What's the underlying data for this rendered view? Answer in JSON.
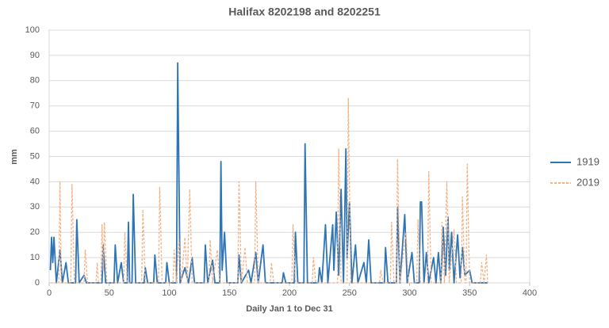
{
  "chart_data": {
    "type": "line",
    "title": "Halifax 8202198 and 8202251",
    "x_label": "Daily Jan 1 to Dec 31",
    "y_label": "mm",
    "xlim": [
      0,
      400
    ],
    "xticks": [
      0,
      50,
      100,
      150,
      200,
      250,
      300,
      350,
      400
    ],
    "ylim": [
      0,
      100
    ],
    "yticks": [
      0,
      10,
      20,
      30,
      40,
      50,
      60,
      70,
      80,
      90,
      100
    ],
    "grid": true,
    "legend": "right",
    "series": [
      {
        "name": "1919",
        "color": "#2e75b6",
        "line_style": "solid",
        "x": [
          1,
          2,
          3,
          4,
          6,
          9,
          11,
          14,
          16,
          22,
          23,
          25,
          29,
          31,
          44,
          45,
          47,
          54,
          55,
          57,
          60,
          62,
          65,
          66,
          67,
          69,
          70,
          72,
          79,
          80,
          82,
          87,
          88,
          90,
          97,
          98,
          100,
          106,
          107,
          109,
          113,
          116,
          119,
          121,
          129,
          130,
          132,
          136,
          138,
          142,
          143,
          144,
          146,
          148,
          157,
          158,
          160,
          166,
          168,
          172,
          174,
          178,
          180,
          194,
          195,
          197,
          204,
          205,
          207,
          212,
          213,
          215,
          224,
          225,
          227,
          230,
          232,
          236,
          237,
          239,
          241,
          243,
          245,
          247,
          248,
          250,
          252,
          255,
          257,
          262,
          264,
          266,
          268,
          279,
          280,
          282,
          289,
          290,
          292,
          296,
          298,
          302,
          304,
          308,
          309,
          310,
          312,
          314,
          316,
          320,
          322,
          324,
          326,
          328,
          330,
          332,
          333,
          335,
          337,
          340,
          342,
          344,
          346,
          350,
          352,
          365
        ],
        "values": [
          5,
          18,
          8,
          18,
          0,
          13,
          0,
          8,
          0,
          0,
          25,
          0,
          3,
          0,
          0,
          15,
          0,
          0,
          15,
          0,
          8,
          0,
          0,
          24,
          0,
          0,
          35,
          0,
          0,
          6,
          0,
          0,
          11,
          0,
          0,
          8,
          0,
          0,
          87,
          0,
          6,
          0,
          10,
          0,
          0,
          15,
          0,
          9,
          0,
          0,
          48,
          5,
          20,
          0,
          0,
          11,
          0,
          5,
          0,
          12,
          0,
          15,
          0,
          0,
          4,
          0,
          0,
          20,
          0,
          0,
          55,
          0,
          0,
          6,
          0,
          23,
          0,
          23,
          5,
          28,
          3,
          37,
          0,
          53,
          10,
          32,
          0,
          15,
          0,
          8,
          0,
          17,
          0,
          0,
          14,
          0,
          0,
          30,
          0,
          27,
          0,
          12,
          0,
          0,
          32,
          32,
          0,
          12,
          0,
          10,
          0,
          12,
          0,
          22,
          3,
          26,
          5,
          20,
          0,
          19,
          2,
          14,
          3,
          5,
          0,
          0
        ]
      },
      {
        "name": "2019",
        "color": "#f4b183",
        "line_style": "dashed",
        "x": [
          1,
          8,
          9,
          10,
          18,
          19,
          21,
          29,
          30,
          32,
          39,
          40,
          41,
          43,
          44,
          45,
          46,
          48,
          62,
          63,
          65,
          77,
          78,
          80,
          91,
          92,
          94,
          103,
          104,
          106,
          108,
          110,
          113,
          115,
          117,
          119,
          133,
          134,
          136,
          140,
          142,
          157,
          158,
          160,
          163,
          165,
          171,
          172,
          174,
          184,
          185,
          187,
          202,
          203,
          205,
          219,
          220,
          222,
          240,
          241,
          243,
          248,
          249,
          251,
          275,
          276,
          278,
          284,
          285,
          287,
          289,
          290,
          292,
          297,
          299,
          306,
          307,
          309,
          315,
          316,
          318,
          326,
          327,
          329,
          331,
          333,
          337,
          339,
          343,
          344,
          346,
          347,
          348,
          350,
          359,
          360,
          362,
          364,
          365
        ],
        "values": [
          0,
          0,
          40,
          0,
          0,
          39,
          0,
          0,
          13,
          0,
          0,
          8,
          0,
          0,
          23,
          5,
          24,
          0,
          0,
          20,
          0,
          0,
          29,
          0,
          0,
          38,
          0,
          0,
          13,
          0,
          17,
          0,
          18,
          0,
          37,
          0,
          0,
          17,
          0,
          13,
          0,
          0,
          40,
          0,
          14,
          0,
          0,
          40,
          0,
          0,
          8,
          0,
          0,
          23,
          0,
          0,
          10,
          0,
          0,
          53,
          0,
          0,
          73,
          0,
          0,
          5,
          0,
          0,
          24,
          0,
          0,
          49,
          0,
          20,
          0,
          0,
          25,
          0,
          0,
          44,
          0,
          0,
          24,
          0,
          40,
          0,
          21,
          0,
          0,
          34,
          0,
          0,
          47,
          0,
          0,
          8,
          0,
          11,
          0
        ]
      }
    ]
  }
}
